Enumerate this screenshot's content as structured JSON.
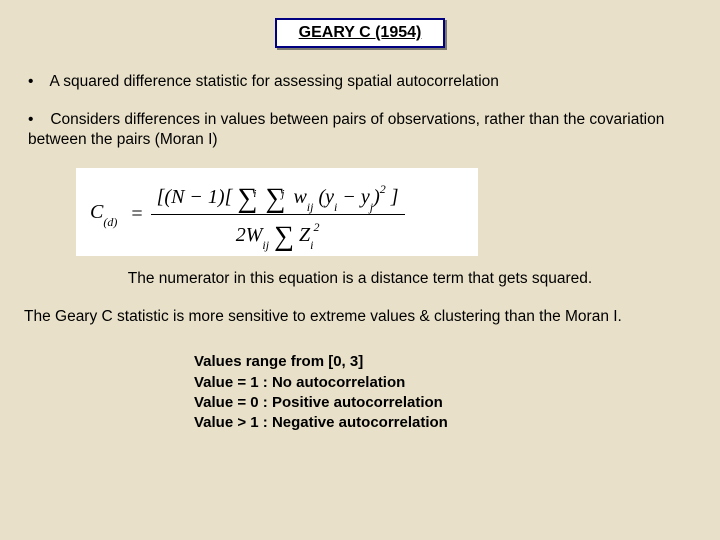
{
  "title": "GEARY C (1954)",
  "bullets": [
    "A squared difference statistic  for assessing spatial autocorrelation",
    "Considers differences in values between pairs of observations, rather than the covariation between the pairs (Moran I)"
  ],
  "formula": {
    "lhs_symbol": "C",
    "lhs_sub": "(d)",
    "numerator": "[(N − 1)[ ∑i ∑j wij (yi − yj)² ]",
    "denominator": "2Wij ∑ Zi²"
  },
  "caption": "The numerator in this equation is a distance term that gets squared.",
  "sensitive": "The Geary C statistic is more sensitive to extreme values & clustering than the Moran I.",
  "values": {
    "range": "Values range from [0, 3]",
    "v1": "Value =  1 :  No autocorrelation",
    "v0": "Value =  0 :  Positive autocorrelation",
    "vgt": "Value >  1 :  Negative autocorrelation"
  },
  "colors": {
    "background": "#e8e0c8",
    "title_border": "#000080",
    "text": "#000000",
    "formula_bg": "#ffffff"
  }
}
